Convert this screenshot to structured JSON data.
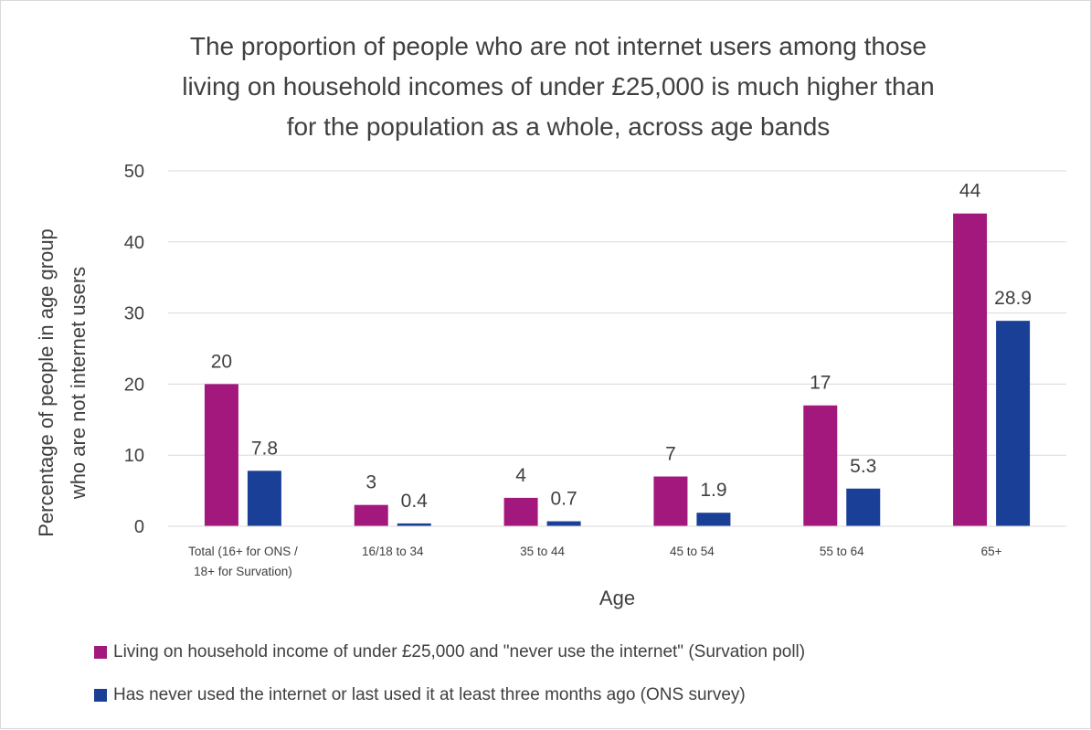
{
  "colors": {
    "series_1": "#a3187d",
    "series_2": "#1a3f96",
    "grid": "#d9d9d9",
    "text": "#404040"
  },
  "chart_data": {
    "type": "bar",
    "title": "The proportion of people who are not internet users among those living on household incomes of under £25,000 is much higher than for the population as a whole, across age bands",
    "title_lines": [
      "The proportion of people who are not internet users among those",
      "living on household incomes of under £25,000 is much higher than",
      "for the population as a whole, across age bands"
    ],
    "xlabel": "Age",
    "ylabel": "Percentage of people in age group who are not internet users",
    "ylabel_lines": [
      "Percentage of people in age group",
      "who are not internet users"
    ],
    "ylim": [
      0,
      50
    ],
    "yticks": [
      "0",
      "10",
      "20",
      "30",
      "40",
      "50"
    ],
    "grid": true,
    "legend_position": "bottom",
    "categories": [
      "Total (16+ for ONS / 18+ for Survation)",
      "16/18 to 34",
      "35 to 44",
      "45 to 54",
      "55 to 64",
      "65+"
    ],
    "category_lines": [
      [
        "Total (16+ for ONS /",
        "18+ for Survation)"
      ],
      [
        "16/18 to 34"
      ],
      [
        "35 to 44"
      ],
      [
        "45 to 54"
      ],
      [
        "55 to 64"
      ],
      [
        "65+"
      ]
    ],
    "series": [
      {
        "name": "Living on household income of under £25,000 and \"never use the internet\" (Survation poll)",
        "values": [
          20,
          3,
          4,
          7,
          17,
          44
        ],
        "labels": [
          "20",
          "3",
          "4",
          "7",
          "17",
          "44"
        ]
      },
      {
        "name": "Has never used the internet or last used it at least three months ago (ONS survey)",
        "values": [
          7.8,
          0.4,
          0.7,
          1.9,
          5.3,
          28.9
        ],
        "labels": [
          "7.8",
          "0.4",
          "0.7",
          "1.9",
          "5.3",
          "28.9"
        ]
      }
    ]
  }
}
